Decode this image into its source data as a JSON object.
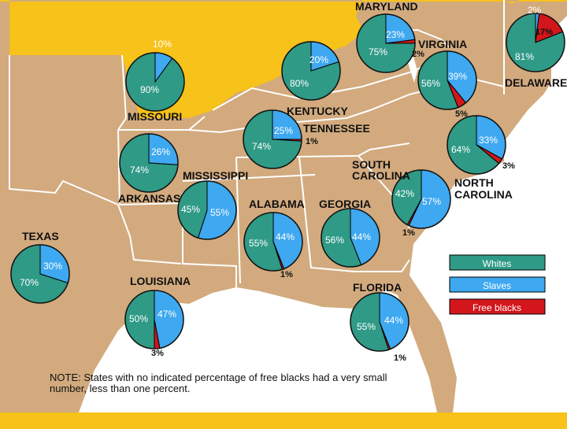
{
  "map": {
    "colors": {
      "background": "#f7c21a",
      "land": "#d2aa7e",
      "water": "#ffffff",
      "border": "#ffffff",
      "whites": "#2f9a86",
      "slaves": "#3ea8f0",
      "free": "#d3161c"
    },
    "states": [
      {
        "id": "maryland",
        "name": "MARYLAND",
        "whites": 75,
        "slaves": 23,
        "free": 2,
        "labels": [
          "75%",
          "23%",
          "2%"
        ]
      },
      {
        "id": "delaware",
        "name": "DELAWARE",
        "whites": 81,
        "slaves": 2,
        "free": 17,
        "labels": [
          "81%",
          "2%",
          "17%"
        ]
      },
      {
        "id": "virginia",
        "name": "VIRGINIA",
        "whites": 56,
        "slaves": 39,
        "free": 5,
        "labels": [
          "56%",
          "39%",
          "5%"
        ]
      },
      {
        "id": "missouri",
        "name": "MISSOURI",
        "whites": 90,
        "slaves": 10,
        "free": 0,
        "labels": [
          "90%",
          "10%"
        ]
      },
      {
        "id": "kentucky",
        "name": "KENTUCKY",
        "whites": 80,
        "slaves": 20,
        "free": 0,
        "labels": [
          "80%",
          "20%"
        ]
      },
      {
        "id": "tennessee",
        "name": "TENNESSEE",
        "whites": 74,
        "slaves": 25,
        "free": 1,
        "labels": [
          "74%",
          "25%",
          "1%"
        ]
      },
      {
        "id": "north-carolina",
        "name": "NORTH CAROLINA",
        "whites": 64,
        "slaves": 33,
        "free": 3,
        "labels": [
          "64%",
          "33%",
          "3%"
        ]
      },
      {
        "id": "arkansas",
        "name": "ARKANSAS",
        "whites": 74,
        "slaves": 26,
        "free": 0,
        "labels": [
          "74%",
          "26%"
        ]
      },
      {
        "id": "mississippi",
        "name": "MISSISSIPPI",
        "whites": 45,
        "slaves": 55,
        "free": 0,
        "labels": [
          "45%",
          "55%"
        ]
      },
      {
        "id": "south-carolina",
        "name": "SOUTH CAROLINA",
        "whites": 42,
        "slaves": 57,
        "free": 1,
        "labels": [
          "42%",
          "57%",
          "1%"
        ]
      },
      {
        "id": "alabama",
        "name": "ALABAMA",
        "whites": 55,
        "slaves": 44,
        "free": 1,
        "labels": [
          "55%",
          "44%",
          "1%"
        ]
      },
      {
        "id": "georgia",
        "name": "GEORGIA",
        "whites": 56,
        "slaves": 44,
        "free": 0,
        "labels": [
          "56%",
          "44%"
        ]
      },
      {
        "id": "texas",
        "name": "TEXAS",
        "whites": 70,
        "slaves": 30,
        "free": 0,
        "labels": [
          "70%",
          "30%"
        ]
      },
      {
        "id": "louisiana",
        "name": "LOUISIANA",
        "whites": 50,
        "slaves": 47,
        "free": 3,
        "labels": [
          "50%",
          "47%",
          "3%"
        ]
      },
      {
        "id": "florida",
        "name": "FLORIDA",
        "whites": 55,
        "slaves": 44,
        "free": 1,
        "labels": [
          "55%",
          "44%",
          "1%"
        ]
      }
    ],
    "legend": {
      "whites": "Whites",
      "slaves": "Slaves",
      "free": "Free blacks"
    },
    "note_line1": "NOTE: States with no indicated percentage of free blacks had a very small",
    "note_line2": "number, less than one percent."
  }
}
